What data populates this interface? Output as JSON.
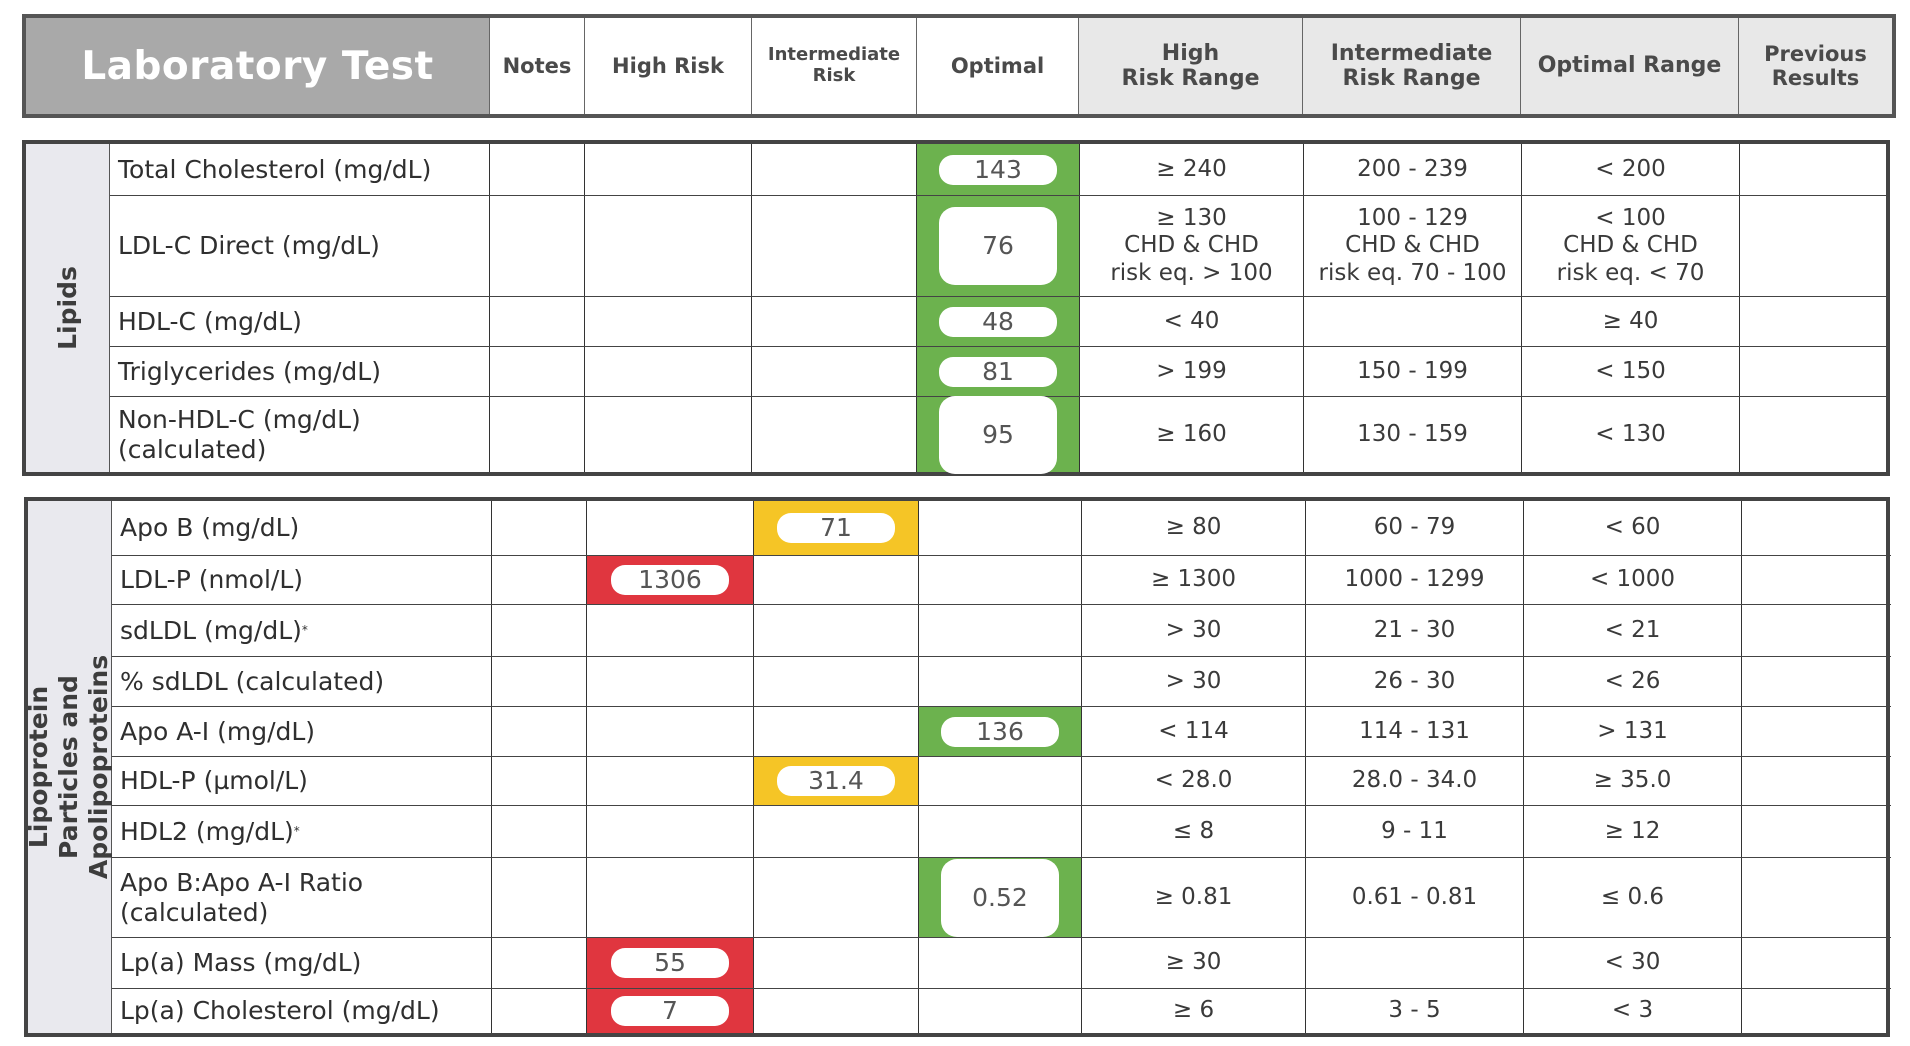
{
  "header": {
    "title": "Laboratory Test",
    "columns": [
      {
        "label": "Notes"
      },
      {
        "label": "High Risk"
      },
      {
        "label": "Intermediate\nRisk"
      },
      {
        "label": "Optimal"
      },
      {
        "label": "High\nRisk Range"
      },
      {
        "label": "Intermediate\nRisk Range"
      },
      {
        "label": "Optimal Range"
      },
      {
        "label": "Previous\nResults"
      }
    ]
  },
  "status_colors": {
    "optimal": "#6cb24e",
    "intermediate": "#f5c526",
    "high": "#e0363f"
  },
  "sections": [
    {
      "label": "Lipids",
      "rows": [
        {
          "test": "Total Cholesterol (mg/dL)",
          "notes": "",
          "status": "optimal",
          "result": "143",
          "high_range": "≥ 240",
          "intermediate_range": "200 - 239",
          "optimal_range": "< 200",
          "previous": ""
        },
        {
          "test": "LDL-C Direct (mg/dL)",
          "notes": "",
          "status": "optimal",
          "result": "76",
          "high_range": "≥ 130\nCHD & CHD\nrisk eq. > 100",
          "intermediate_range": "100 - 129\nCHD & CHD\nrisk eq. 70 - 100",
          "optimal_range": "< 100\nCHD & CHD\nrisk eq. < 70",
          "previous": ""
        },
        {
          "test": "HDL-C (mg/dL)",
          "notes": "",
          "status": "optimal",
          "result": "48",
          "high_range": "< 40",
          "intermediate_range": "",
          "optimal_range": "≥ 40",
          "previous": ""
        },
        {
          "test": "Triglycerides (mg/dL)",
          "notes": "",
          "status": "optimal",
          "result": "81",
          "high_range": "> 199",
          "intermediate_range": "150 - 199",
          "optimal_range": "< 150",
          "previous": ""
        },
        {
          "test": "Non-HDL-C (mg/dL)\n(calculated)",
          "notes": "",
          "status": "optimal",
          "result": "95",
          "high_range": "≥ 160",
          "intermediate_range": "130 - 159",
          "optimal_range": "< 130",
          "previous": ""
        }
      ]
    },
    {
      "label": "Lipoprotein Particles and\nApolipoproteins",
      "rows": [
        {
          "test": "Apo B (mg/dL)",
          "notes": "",
          "status": "intermediate",
          "result": "71",
          "high_range": "≥ 80",
          "intermediate_range": "60 - 79",
          "optimal_range": "< 60",
          "previous": ""
        },
        {
          "test": "LDL-P (nmol/L)",
          "notes": "",
          "status": "high",
          "result": "1306",
          "high_range": "≥ 1300",
          "intermediate_range": "1000 - 1299",
          "optimal_range": "< 1000",
          "previous": ""
        },
        {
          "test": "sdLDL (mg/dL)",
          "footnote": "*",
          "notes": "",
          "status": "",
          "result": "",
          "high_range": "> 30",
          "intermediate_range": "21 - 30",
          "optimal_range": "< 21",
          "previous": ""
        },
        {
          "test": "% sdLDL (calculated)",
          "notes": "",
          "status": "",
          "result": "",
          "high_range": "> 30",
          "intermediate_range": "26 - 30",
          "optimal_range": "< 26",
          "previous": ""
        },
        {
          "test": "Apo A-I (mg/dL)",
          "notes": "",
          "status": "optimal",
          "result": "136",
          "high_range": "< 114",
          "intermediate_range": "114 - 131",
          "optimal_range": "> 131",
          "previous": ""
        },
        {
          "test": "HDL-P (µmol/L)",
          "notes": "",
          "status": "intermediate",
          "result": "31.4",
          "high_range": "< 28.0",
          "intermediate_range": "28.0 - 34.0",
          "optimal_range": "≥ 35.0",
          "previous": ""
        },
        {
          "test": "HDL2 (mg/dL)",
          "footnote": "*",
          "notes": "",
          "status": "",
          "result": "",
          "high_range": "≤ 8",
          "intermediate_range": "9 - 11",
          "optimal_range": "≥ 12",
          "previous": ""
        },
        {
          "test": "Apo B:Apo A-I Ratio\n(calculated)",
          "notes": "",
          "status": "optimal",
          "result": "0.52",
          "high_range": "≥ 0.81",
          "intermediate_range": "0.61 - 0.81",
          "optimal_range": "≤ 0.6",
          "previous": ""
        },
        {
          "test": "Lp(a) Mass (mg/dL)",
          "notes": "",
          "status": "high",
          "result": "55",
          "high_range": "≥ 30",
          "intermediate_range": "",
          "optimal_range": "< 30",
          "previous": ""
        },
        {
          "test": "Lp(a) Cholesterol (mg/dL)",
          "notes": "",
          "status": "high",
          "result": "7",
          "high_range": "≥ 6",
          "intermediate_range": "3 - 5",
          "optimal_range": "< 3",
          "previous": ""
        }
      ]
    }
  ]
}
